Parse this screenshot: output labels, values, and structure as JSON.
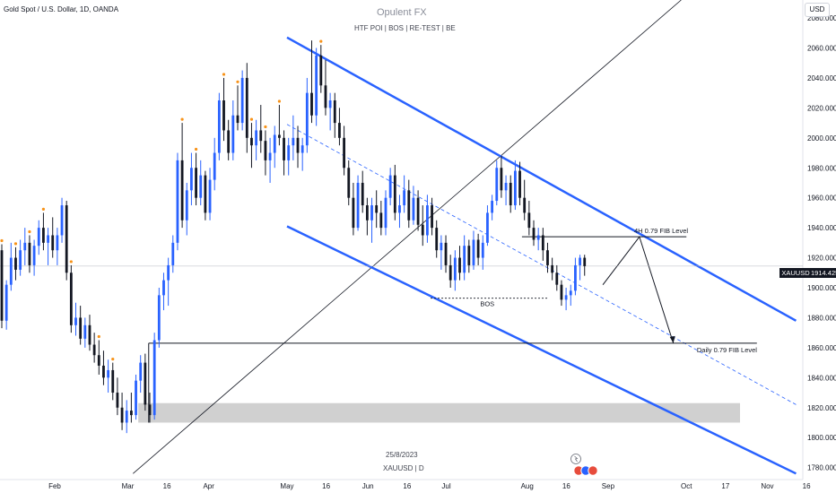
{
  "header": {
    "symbol_title": "Gold Spot / U.S. Dollar, 1D, OANDA",
    "currency": "USD",
    "brand": "Opulent FX",
    "subtitle": "HTF POI   |   BOS   |  RE-TEST  |  BE"
  },
  "footer": {
    "date_label": "25/8/2023",
    "symbol_label": "XAUUSD  |  D"
  },
  "price_tag": {
    "symbol": "XAUUSD",
    "value": "1914.425"
  },
  "annotations": {
    "fib_4h": "4H 0.79 FIB Level",
    "fib_daily": "Daily 0.79 FIB Level",
    "bos": "BOS"
  },
  "colors": {
    "bull": "#2962ff",
    "bear": "#131722",
    "channel": "#2962ff",
    "marker": "#f7931a",
    "zone": "#c8c8c8"
  },
  "chart_data": {
    "type": "candlestick",
    "title": "Gold Spot / U.S. Dollar, 1D, OANDA",
    "y_axis": {
      "ticks": [
        1780,
        1800,
        1820,
        1840,
        1860,
        1880,
        1900,
        1920,
        1940,
        1960,
        1980,
        2000,
        2020,
        2040,
        2060,
        2080
      ],
      "tick_labels": [
        "1780.000",
        "1800.000",
        "1820.000",
        "1840.000",
        "1860.000",
        "1880.000",
        "1900.000",
        "1920.000",
        "1940.000",
        "1960.000",
        "1980.000",
        "2000.000",
        "2020.000",
        "2040.000",
        "2060.000",
        "2080.000"
      ],
      "ylim": [
        1772,
        2092
      ]
    },
    "x_axis": {
      "labels": [
        "Feb",
        "Mar",
        "16",
        "Apr",
        "May",
        "16",
        "Jun",
        "16",
        "Jul",
        "Aug",
        "16",
        "Sep",
        "Oct",
        "17",
        "Nov",
        "16"
      ],
      "label_days": [
        0,
        28,
        43,
        59,
        89,
        104,
        120,
        135,
        150,
        181,
        196,
        212,
        242,
        257,
        273,
        288
      ],
      "day_zero": "2023-02-01"
    },
    "current_price": 1914.425,
    "candles": [
      {
        "o": 1925,
        "h": 1929,
        "l": 1873,
        "c": 1878
      },
      {
        "o": 1878,
        "h": 1905,
        "l": 1872,
        "c": 1902
      },
      {
        "o": 1902,
        "h": 1930,
        "l": 1898,
        "c": 1920
      },
      {
        "o": 1920,
        "h": 1927,
        "l": 1905,
        "c": 1912
      },
      {
        "o": 1912,
        "h": 1932,
        "l": 1908,
        "c": 1925
      },
      {
        "o": 1925,
        "h": 1940,
        "l": 1915,
        "c": 1930
      },
      {
        "o": 1930,
        "h": 1935,
        "l": 1910,
        "c": 1915
      },
      {
        "o": 1915,
        "h": 1932,
        "l": 1908,
        "c": 1928
      },
      {
        "o": 1928,
        "h": 1945,
        "l": 1922,
        "c": 1940
      },
      {
        "o": 1940,
        "h": 1950,
        "l": 1925,
        "c": 1930
      },
      {
        "o": 1930,
        "h": 1940,
        "l": 1915,
        "c": 1935
      },
      {
        "o": 1935,
        "h": 1947,
        "l": 1920,
        "c": 1925
      },
      {
        "o": 1925,
        "h": 1940,
        "l": 1915,
        "c": 1935
      },
      {
        "o": 1935,
        "h": 1960,
        "l": 1930,
        "c": 1955
      },
      {
        "o": 1955,
        "h": 1958,
        "l": 1905,
        "c": 1910
      },
      {
        "o": 1910,
        "h": 1915,
        "l": 1870,
        "c": 1875
      },
      {
        "o": 1875,
        "h": 1890,
        "l": 1868,
        "c": 1880
      },
      {
        "o": 1880,
        "h": 1888,
        "l": 1862,
        "c": 1866
      },
      {
        "o": 1866,
        "h": 1880,
        "l": 1860,
        "c": 1875
      },
      {
        "o": 1875,
        "h": 1882,
        "l": 1858,
        "c": 1862
      },
      {
        "o": 1862,
        "h": 1870,
        "l": 1850,
        "c": 1855
      },
      {
        "o": 1855,
        "h": 1865,
        "l": 1842,
        "c": 1848
      },
      {
        "o": 1848,
        "h": 1858,
        "l": 1835,
        "c": 1840
      },
      {
        "o": 1840,
        "h": 1852,
        "l": 1830,
        "c": 1845
      },
      {
        "o": 1845,
        "h": 1850,
        "l": 1825,
        "c": 1830
      },
      {
        "o": 1830,
        "h": 1840,
        "l": 1815,
        "c": 1820
      },
      {
        "o": 1820,
        "h": 1830,
        "l": 1805,
        "c": 1810
      },
      {
        "o": 1810,
        "h": 1825,
        "l": 1803,
        "c": 1818
      },
      {
        "o": 1818,
        "h": 1830,
        "l": 1810,
        "c": 1815
      },
      {
        "o": 1815,
        "h": 1842,
        "l": 1812,
        "c": 1838
      },
      {
        "o": 1838,
        "h": 1855,
        "l": 1830,
        "c": 1850
      },
      {
        "o": 1850,
        "h": 1856,
        "l": 1818,
        "c": 1822
      },
      {
        "o": 1822,
        "h": 1830,
        "l": 1810,
        "c": 1815
      },
      {
        "o": 1815,
        "h": 1870,
        "l": 1812,
        "c": 1865
      },
      {
        "o": 1865,
        "h": 1900,
        "l": 1860,
        "c": 1895
      },
      {
        "o": 1895,
        "h": 1910,
        "l": 1885,
        "c": 1905
      },
      {
        "o": 1905,
        "h": 1920,
        "l": 1888,
        "c": 1915
      },
      {
        "o": 1915,
        "h": 1935,
        "l": 1910,
        "c": 1930
      },
      {
        "o": 1930,
        "h": 1990,
        "l": 1925,
        "c": 1985
      },
      {
        "o": 1985,
        "h": 2010,
        "l": 1940,
        "c": 1945
      },
      {
        "o": 1945,
        "h": 1970,
        "l": 1935,
        "c": 1965
      },
      {
        "o": 1965,
        "h": 1990,
        "l": 1955,
        "c": 1980
      },
      {
        "o": 1980,
        "h": 1990,
        "l": 1955,
        "c": 1960
      },
      {
        "o": 1960,
        "h": 1985,
        "l": 1955,
        "c": 1975
      },
      {
        "o": 1975,
        "h": 1978,
        "l": 1945,
        "c": 1950
      },
      {
        "o": 1950,
        "h": 1980,
        "l": 1945,
        "c": 1972
      },
      {
        "o": 1972,
        "h": 2000,
        "l": 1965,
        "c": 1990
      },
      {
        "o": 1990,
        "h": 2030,
        "l": 1985,
        "c": 2025
      },
      {
        "o": 2025,
        "h": 2040,
        "l": 1998,
        "c": 2005
      },
      {
        "o": 2005,
        "h": 2012,
        "l": 1985,
        "c": 1990
      },
      {
        "o": 1990,
        "h": 2025,
        "l": 1985,
        "c": 2015
      },
      {
        "o": 2015,
        "h": 2035,
        "l": 2005,
        "c": 2010
      },
      {
        "o": 2010,
        "h": 2045,
        "l": 2005,
        "c": 2040
      },
      {
        "o": 2040,
        "h": 2050,
        "l": 1990,
        "c": 2000
      },
      {
        "o": 2000,
        "h": 2010,
        "l": 1980,
        "c": 1995
      },
      {
        "o": 1995,
        "h": 2012,
        "l": 1985,
        "c": 2005
      },
      {
        "o": 2005,
        "h": 2022,
        "l": 1990,
        "c": 1998
      },
      {
        "o": 1998,
        "h": 2005,
        "l": 1975,
        "c": 1985
      },
      {
        "o": 1985,
        "h": 2000,
        "l": 1970,
        "c": 1990
      },
      {
        "o": 1990,
        "h": 2008,
        "l": 1980,
        "c": 2002
      },
      {
        "o": 2002,
        "h": 2022,
        "l": 1995,
        "c": 2000
      },
      {
        "o": 2000,
        "h": 2005,
        "l": 1975,
        "c": 1985
      },
      {
        "o": 1985,
        "h": 2000,
        "l": 1975,
        "c": 1995
      },
      {
        "o": 1995,
        "h": 2015,
        "l": 1985,
        "c": 2000
      },
      {
        "o": 2000,
        "h": 2008,
        "l": 1980,
        "c": 1990
      },
      {
        "o": 1990,
        "h": 2000,
        "l": 1978,
        "c": 1995
      },
      {
        "o": 1995,
        "h": 2040,
        "l": 1990,
        "c": 2030
      },
      {
        "o": 2030,
        "h": 2065,
        "l": 2010,
        "c": 2015
      },
      {
        "o": 2015,
        "h": 2060,
        "l": 2008,
        "c": 2055
      },
      {
        "o": 2055,
        "h": 2062,
        "l": 2030,
        "c": 2035
      },
      {
        "o": 2035,
        "h": 2052,
        "l": 2015,
        "c": 2020
      },
      {
        "o": 2020,
        "h": 2030,
        "l": 2005,
        "c": 2025
      },
      {
        "o": 2025,
        "h": 2030,
        "l": 2000,
        "c": 2010
      },
      {
        "o": 2010,
        "h": 2020,
        "l": 1995,
        "c": 2000
      },
      {
        "o": 2000,
        "h": 2008,
        "l": 1975,
        "c": 1980
      },
      {
        "o": 1980,
        "h": 1985,
        "l": 1955,
        "c": 1960
      },
      {
        "o": 1960,
        "h": 1970,
        "l": 1935,
        "c": 1940
      },
      {
        "o": 1940,
        "h": 1975,
        "l": 1938,
        "c": 1970
      },
      {
        "o": 1970,
        "h": 1978,
        "l": 1950,
        "c": 1955
      },
      {
        "o": 1955,
        "h": 1960,
        "l": 1935,
        "c": 1945
      },
      {
        "o": 1945,
        "h": 1960,
        "l": 1930,
        "c": 1955
      },
      {
        "o": 1955,
        "h": 1965,
        "l": 1940,
        "c": 1950
      },
      {
        "o": 1950,
        "h": 1958,
        "l": 1935,
        "c": 1940
      },
      {
        "o": 1940,
        "h": 1965,
        "l": 1935,
        "c": 1960
      },
      {
        "o": 1960,
        "h": 1980,
        "l": 1955,
        "c": 1975
      },
      {
        "o": 1975,
        "h": 1982,
        "l": 1945,
        "c": 1950
      },
      {
        "o": 1950,
        "h": 1962,
        "l": 1940,
        "c": 1955
      },
      {
        "o": 1955,
        "h": 1975,
        "l": 1950,
        "c": 1965
      },
      {
        "o": 1965,
        "h": 1972,
        "l": 1940,
        "c": 1945
      },
      {
        "o": 1945,
        "h": 1968,
        "l": 1942,
        "c": 1960
      },
      {
        "o": 1960,
        "h": 1965,
        "l": 1938,
        "c": 1942
      },
      {
        "o": 1942,
        "h": 1955,
        "l": 1928,
        "c": 1935
      },
      {
        "o": 1935,
        "h": 1962,
        "l": 1930,
        "c": 1955
      },
      {
        "o": 1955,
        "h": 1960,
        "l": 1935,
        "c": 1940
      },
      {
        "o": 1940,
        "h": 1945,
        "l": 1920,
        "c": 1925
      },
      {
        "o": 1925,
        "h": 1935,
        "l": 1912,
        "c": 1930
      },
      {
        "o": 1930,
        "h": 1935,
        "l": 1910,
        "c": 1915
      },
      {
        "o": 1915,
        "h": 1922,
        "l": 1900,
        "c": 1905
      },
      {
        "o": 1905,
        "h": 1925,
        "l": 1898,
        "c": 1920
      },
      {
        "o": 1920,
        "h": 1928,
        "l": 1905,
        "c": 1910
      },
      {
        "o": 1910,
        "h": 1935,
        "l": 1905,
        "c": 1928
      },
      {
        "o": 1928,
        "h": 1932,
        "l": 1910,
        "c": 1915
      },
      {
        "o": 1915,
        "h": 1938,
        "l": 1912,
        "c": 1932
      },
      {
        "o": 1932,
        "h": 1936,
        "l": 1915,
        "c": 1920
      },
      {
        "o": 1920,
        "h": 1935,
        "l": 1912,
        "c": 1930
      },
      {
        "o": 1930,
        "h": 1955,
        "l": 1928,
        "c": 1950
      },
      {
        "o": 1950,
        "h": 1962,
        "l": 1945,
        "c": 1958
      },
      {
        "o": 1958,
        "h": 1985,
        "l": 1955,
        "c": 1980
      },
      {
        "o": 1980,
        "h": 1988,
        "l": 1960,
        "c": 1965
      },
      {
        "o": 1965,
        "h": 1975,
        "l": 1955,
        "c": 1970
      },
      {
        "o": 1970,
        "h": 1975,
        "l": 1950,
        "c": 1955
      },
      {
        "o": 1955,
        "h": 1985,
        "l": 1952,
        "c": 1978
      },
      {
        "o": 1978,
        "h": 1984,
        "l": 1955,
        "c": 1960
      },
      {
        "o": 1960,
        "h": 1972,
        "l": 1945,
        "c": 1950
      },
      {
        "o": 1950,
        "h": 1958,
        "l": 1935,
        "c": 1940
      },
      {
        "o": 1940,
        "h": 1945,
        "l": 1928,
        "c": 1932
      },
      {
        "o": 1932,
        "h": 1940,
        "l": 1925,
        "c": 1935
      },
      {
        "o": 1935,
        "h": 1940,
        "l": 1918,
        "c": 1925
      },
      {
        "o": 1925,
        "h": 1930,
        "l": 1910,
        "c": 1915
      },
      {
        "o": 1915,
        "h": 1920,
        "l": 1905,
        "c": 1910
      },
      {
        "o": 1910,
        "h": 1915,
        "l": 1898,
        "c": 1902
      },
      {
        "o": 1902,
        "h": 1905,
        "l": 1888,
        "c": 1892
      },
      {
        "o": 1892,
        "h": 1900,
        "l": 1885,
        "c": 1895
      },
      {
        "o": 1895,
        "h": 1902,
        "l": 1888,
        "c": 1898
      },
      {
        "o": 1898,
        "h": 1920,
        "l": 1895,
        "c": 1915
      },
      {
        "o": 1915,
        "h": 1922,
        "l": 1905,
        "c": 1920
      },
      {
        "o": 1920,
        "h": 1922,
        "l": 1908,
        "c": 1914.425
      }
    ],
    "drawings": {
      "upper_channel": {
        "from": {
          "day": 89,
          "price": 2067
        },
        "to": {
          "day": 284,
          "price": 1878
        }
      },
      "lower_channel": {
        "from": {
          "day": 89,
          "price": 1941
        },
        "to": {
          "day": 284,
          "price": 1776
        }
      },
      "mid_dashed": {
        "from": {
          "day": 89,
          "price": 2009
        },
        "to": {
          "day": 284,
          "price": 1822
        }
      },
      "trendline": {
        "from": {
          "day": 30,
          "price": 1776
        },
        "to": {
          "day": 240,
          "price": 2092
        }
      },
      "fib_4h_level": 1934,
      "fib_daily_level": 1863,
      "bos_level": 1893,
      "zone": [
        1810,
        1823
      ]
    }
  }
}
